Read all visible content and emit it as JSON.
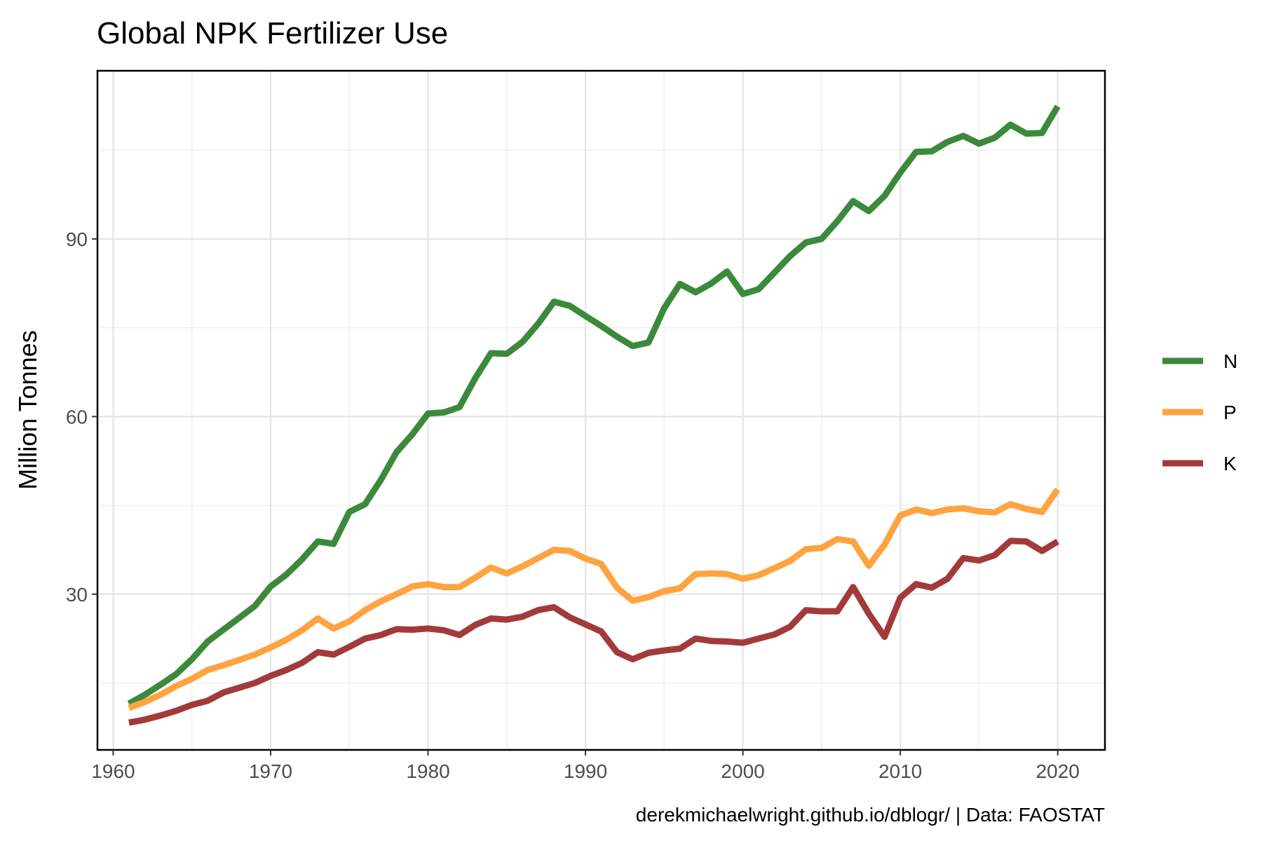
{
  "chart_data": {
    "type": "line",
    "title": "Global NPK Fertilizer Use",
    "xlabel": "",
    "ylabel": "Million Tonnes",
    "caption": "derekmichaelwright.github.io/dblogr/ | Data: FAOSTAT",
    "xlim": [
      1959,
      2023
    ],
    "ylim": [
      3.7,
      118.4
    ],
    "x_ticks": [
      1960,
      1970,
      1980,
      1990,
      2000,
      2010,
      2020
    ],
    "y_ticks": [
      30,
      60,
      90
    ],
    "grid": true,
    "legend_position": "right",
    "x": [
      1961,
      1962,
      1963,
      1964,
      1965,
      1966,
      1967,
      1968,
      1969,
      1970,
      1971,
      1972,
      1973,
      1974,
      1975,
      1976,
      1977,
      1978,
      1979,
      1980,
      1981,
      1982,
      1983,
      1984,
      1985,
      1986,
      1987,
      1988,
      1989,
      1990,
      1991,
      1992,
      1993,
      1994,
      1995,
      1996,
      1997,
      1998,
      1999,
      2000,
      2001,
      2002,
      2003,
      2004,
      2005,
      2006,
      2007,
      2008,
      2009,
      2010,
      2011,
      2012,
      2013,
      2014,
      2015,
      2016,
      2017,
      2018,
      2019,
      2020
    ],
    "series": [
      {
        "name": "N",
        "color": "#3b8a3b",
        "values": [
          11.5,
          13.0,
          14.7,
          16.5,
          19.0,
          22.0,
          24.0,
          26.0,
          28.0,
          31.3,
          33.3,
          35.9,
          38.9,
          38.5,
          43.9,
          45.2,
          49.3,
          54.0,
          57.0,
          60.5,
          60.7,
          61.6,
          66.5,
          70.7,
          70.6,
          72.6,
          75.7,
          79.4,
          78.7,
          77.0,
          75.3,
          73.5,
          71.9,
          72.5,
          78.3,
          82.4,
          81.0,
          82.5,
          84.5,
          80.7,
          81.5,
          84.3,
          87.1,
          89.4,
          90.0,
          93.0,
          96.4,
          94.7,
          97.3,
          101.2,
          104.7,
          104.8,
          106.4,
          107.4,
          106.1,
          107.1,
          109.3,
          107.8,
          107.9,
          112.4
        ]
      },
      {
        "name": "P",
        "color": "#ffa340",
        "values": [
          10.8,
          11.8,
          13.0,
          14.5,
          15.7,
          17.2,
          18.0,
          18.9,
          19.8,
          21.0,
          22.3,
          23.9,
          25.9,
          24.2,
          25.4,
          27.3,
          28.8,
          30.0,
          31.3,
          31.7,
          31.2,
          31.2,
          32.8,
          34.5,
          33.5,
          34.7,
          36.1,
          37.5,
          37.3,
          36.0,
          35.1,
          31.1,
          28.9,
          29.5,
          30.5,
          31.0,
          33.4,
          33.5,
          33.4,
          32.6,
          33.2,
          34.4,
          35.6,
          37.6,
          37.8,
          39.3,
          38.9,
          34.8,
          38.4,
          43.3,
          44.3,
          43.7,
          44.3,
          44.5,
          44.0,
          43.8,
          45.2,
          44.4,
          43.9,
          47.7
        ]
      },
      {
        "name": "K",
        "color": "#a33a3a",
        "values": [
          8.3,
          8.8,
          9.5,
          10.3,
          11.3,
          12.0,
          13.4,
          14.2,
          15.0,
          16.2,
          17.2,
          18.4,
          20.2,
          19.8,
          21.1,
          22.5,
          23.1,
          24.1,
          24.0,
          24.2,
          23.9,
          23.1,
          24.8,
          25.9,
          25.7,
          26.2,
          27.3,
          27.8,
          26.1,
          24.9,
          23.7,
          20.2,
          19.0,
          20.1,
          20.5,
          20.8,
          22.5,
          22.1,
          22.0,
          21.8,
          22.5,
          23.2,
          24.5,
          27.3,
          27.1,
          27.1,
          31.2,
          26.7,
          22.8,
          29.4,
          31.7,
          31.1,
          32.6,
          36.1,
          35.7,
          36.6,
          39.0,
          38.9,
          37.3,
          38.9
        ]
      }
    ]
  }
}
